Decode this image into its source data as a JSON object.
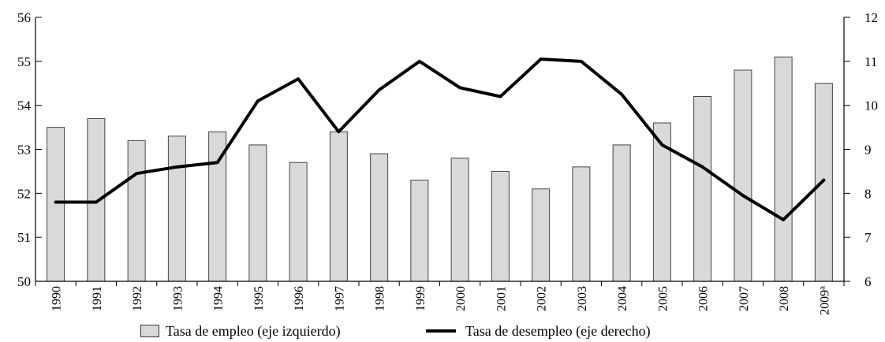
{
  "chart_data": {
    "type": "bar+line",
    "categories": [
      "1990",
      "1991",
      "1992",
      "1993",
      "1994",
      "1995",
      "1996",
      "1997",
      "1998",
      "1999",
      "2000",
      "2001",
      "2002",
      "2003",
      "2004",
      "2005",
      "2006",
      "2007",
      "2008",
      "2009"
    ],
    "category_superscripts": {
      "2009": "a"
    },
    "series": [
      {
        "name": "Tasa de empleo (eje izquierdo)",
        "type": "bar",
        "axis": "left",
        "color": "#d9d9d9",
        "values": [
          53.5,
          53.7,
          53.2,
          53.3,
          53.4,
          53.1,
          52.7,
          53.4,
          52.9,
          52.3,
          52.8,
          52.5,
          52.1,
          52.6,
          53.1,
          53.6,
          54.2,
          54.8,
          55.1,
          54.5
        ]
      },
      {
        "name": "Tasa de desempleo (eje derecho)",
        "type": "line",
        "axis": "right",
        "color": "#000000",
        "values": [
          7.8,
          7.8,
          8.45,
          8.6,
          8.7,
          10.1,
          10.6,
          9.4,
          10.35,
          11.0,
          10.4,
          10.2,
          11.05,
          11.0,
          10.25,
          9.1,
          8.6,
          7.95,
          7.4,
          8.3
        ]
      }
    ],
    "y_left": {
      "min": 50,
      "max": 56,
      "ticks": [
        50,
        51,
        52,
        53,
        54,
        55,
        56
      ]
    },
    "y_right": {
      "min": 6,
      "max": 12,
      "ticks": [
        6,
        7,
        8,
        9,
        10,
        11,
        12
      ]
    },
    "grid": false,
    "legend_position": "bottom"
  }
}
